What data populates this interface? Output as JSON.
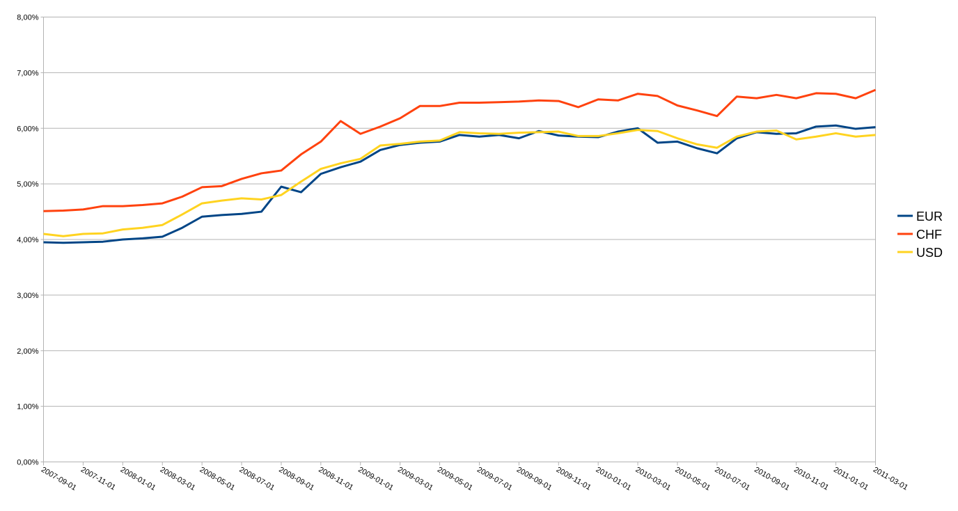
{
  "chart_data": {
    "type": "line",
    "title": "",
    "xlabel": "",
    "ylabel": "",
    "ylim": [
      0,
      8
    ],
    "y_tick_labels": [
      "0,00%",
      "1,00%",
      "2,00%",
      "3,00%",
      "4,00%",
      "5,00%",
      "6,00%",
      "7,00%",
      "8,00%"
    ],
    "x_tick_labels": [
      "2007-09-01",
      "2007-11-01",
      "2008-01-01",
      "2008-03-01",
      "2008-05-01",
      "2008-07-01",
      "2008-09-01",
      "2008-11-01",
      "2009-01-01",
      "2009-03-01",
      "2009-05-01",
      "2009-07-01",
      "2009-09-01",
      "2009-11-01",
      "2010-01-01",
      "2010-03-01",
      "2010-05-01",
      "2010-07-01",
      "2010-09-01",
      "2010-11-01",
      "2011-01-01",
      "2011-03-01"
    ],
    "grid": "horizontal",
    "legend_position": "right",
    "series": [
      {
        "name": "EUR",
        "color": "#004586",
        "values": [
          3.95,
          3.94,
          3.95,
          3.96,
          4.0,
          4.02,
          4.05,
          4.21,
          4.41,
          4.44,
          4.46,
          4.5,
          4.95,
          4.85,
          5.18,
          5.3,
          5.4,
          5.61,
          5.7,
          5.74,
          5.76,
          5.88,
          5.85,
          5.88,
          5.82,
          5.95,
          5.87,
          5.85,
          5.84,
          5.94,
          6.0,
          5.74,
          5.76,
          5.64,
          5.55,
          5.82,
          5.93,
          5.9,
          5.91,
          6.03,
          6.05,
          5.99,
          6.02
        ]
      },
      {
        "name": "CHF",
        "color": "#ff420e",
        "values": [
          4.51,
          4.52,
          4.54,
          4.6,
          4.6,
          4.62,
          4.65,
          4.77,
          4.94,
          4.96,
          5.09,
          5.19,
          5.24,
          5.53,
          5.76,
          6.13,
          5.9,
          6.03,
          6.18,
          6.4,
          6.4,
          6.46,
          6.46,
          6.47,
          6.48,
          6.5,
          6.49,
          6.38,
          6.52,
          6.5,
          6.62,
          6.58,
          6.41,
          6.32,
          6.22,
          6.57,
          6.54,
          6.6,
          6.54,
          6.63,
          6.62,
          6.54,
          6.69
        ]
      },
      {
        "name": "USD",
        "color": "#ffd320",
        "values": [
          4.1,
          4.06,
          4.1,
          4.11,
          4.18,
          4.21,
          4.26,
          4.45,
          4.65,
          4.7,
          4.74,
          4.72,
          4.8,
          5.04,
          5.27,
          5.37,
          5.45,
          5.69,
          5.72,
          5.76,
          5.78,
          5.93,
          5.91,
          5.9,
          5.92,
          5.93,
          5.94,
          5.86,
          5.86,
          5.91,
          5.97,
          5.95,
          5.82,
          5.71,
          5.65,
          5.85,
          5.94,
          5.96,
          5.8,
          5.85,
          5.91,
          5.85,
          5.88
        ]
      }
    ]
  }
}
